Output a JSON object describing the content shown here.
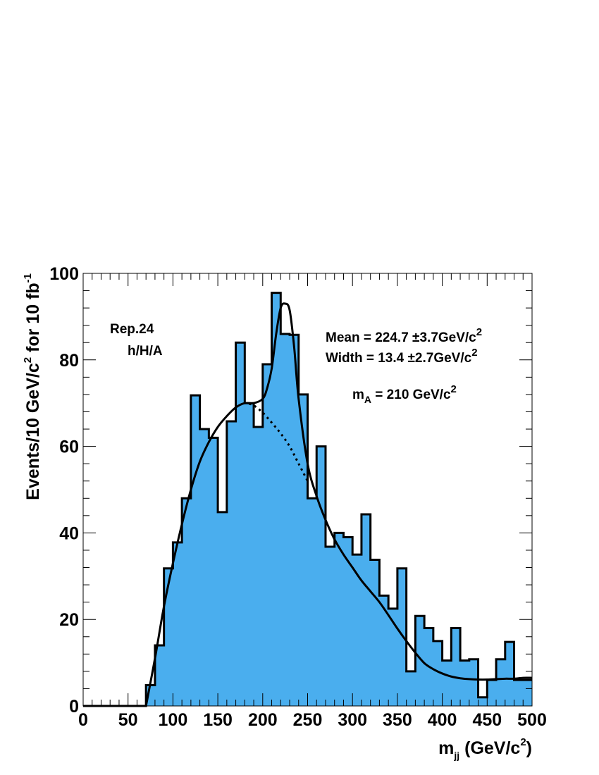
{
  "chart_data": {
    "type": "histogram",
    "bin_width": 10,
    "x_range": [
      0,
      500
    ],
    "y_range": [
      0,
      100
    ],
    "fill_color": "#4aaeee",
    "bins_low_edges": [
      0,
      10,
      20,
      30,
      40,
      50,
      60,
      70,
      80,
      90,
      100,
      110,
      120,
      130,
      140,
      150,
      160,
      170,
      180,
      190,
      200,
      210,
      220,
      230,
      240,
      250,
      260,
      270,
      280,
      290,
      300,
      310,
      320,
      330,
      340,
      350,
      360,
      370,
      380,
      390,
      400,
      410,
      420,
      430,
      440,
      450,
      460,
      470,
      480,
      490
    ],
    "counts": [
      0,
      0,
      0,
      0,
      0,
      0,
      0,
      4.8,
      14,
      31.8,
      37.8,
      48,
      71.8,
      64,
      62,
      44.8,
      65.8,
      84,
      70,
      64.5,
      79,
      95.5,
      86,
      85.8,
      72,
      48,
      60,
      36.8,
      40,
      39,
      35,
      44.3,
      33.8,
      25.5,
      22.5,
      31.8,
      8,
      20.8,
      18,
      15,
      10.5,
      18,
      10.5,
      10.8,
      2,
      6,
      10.8,
      14.8,
      6,
      6
    ],
    "fit_signal_plus_background": {
      "x": [
        70,
        80,
        90,
        100,
        110,
        120,
        130,
        140,
        150,
        160,
        170,
        180,
        190,
        200,
        205,
        210,
        215,
        220,
        225,
        230,
        235,
        240,
        250,
        260,
        270,
        280,
        290,
        300,
        310,
        320,
        330,
        340,
        350,
        360,
        370,
        380,
        390,
        400,
        410,
        420,
        430,
        440,
        450,
        460,
        470,
        480,
        490,
        500
      ],
      "y": [
        0,
        11,
        23,
        33,
        42,
        50,
        56.5,
        61,
        64.5,
        67,
        69,
        70,
        70,
        71,
        73.5,
        78,
        86,
        92,
        93,
        91.5,
        83,
        71,
        56,
        48.5,
        43,
        38.5,
        35,
        32,
        29,
        26.5,
        24,
        21,
        17.9,
        15,
        12.3,
        9.9,
        8.5,
        7.5,
        6.8,
        6.4,
        6.2,
        6.1,
        6.1,
        6.2,
        6.3,
        6.3,
        6.5,
        6.5
      ]
    },
    "fit_background": {
      "x": [
        185,
        190,
        200,
        210,
        220,
        230,
        240,
        250
      ],
      "y": [
        69.8,
        69.5,
        67.8,
        65.5,
        63,
        60,
        56,
        52
      ]
    },
    "xticks": [
      "0",
      "50",
      "100",
      "150",
      "200",
      "250",
      "300",
      "350",
      "400",
      "450",
      "500"
    ],
    "yticks": [
      "0",
      "20",
      "40",
      "60",
      "80",
      "100"
    ],
    "xlabel": {
      "base": "m",
      "sub": "jj",
      "mid": " (GeV/c",
      "sup": "2",
      "end": ")"
    },
    "ylabel": {
      "pre": "Events/10 GeV/c",
      "sup1": "2",
      "mid": " for 10 fb",
      "sup2": "-1"
    },
    "annotations": {
      "rep": "Rep.24",
      "channel": "h/H/A",
      "mean": "Mean = 224.7 ±3.7GeV/c",
      "width": "Width = 13.4 ±2.7GeV/c",
      "sq": "2",
      "ma_base": "m",
      "ma_sub": "A",
      "ma_rest": " = 210 GeV/c"
    }
  }
}
